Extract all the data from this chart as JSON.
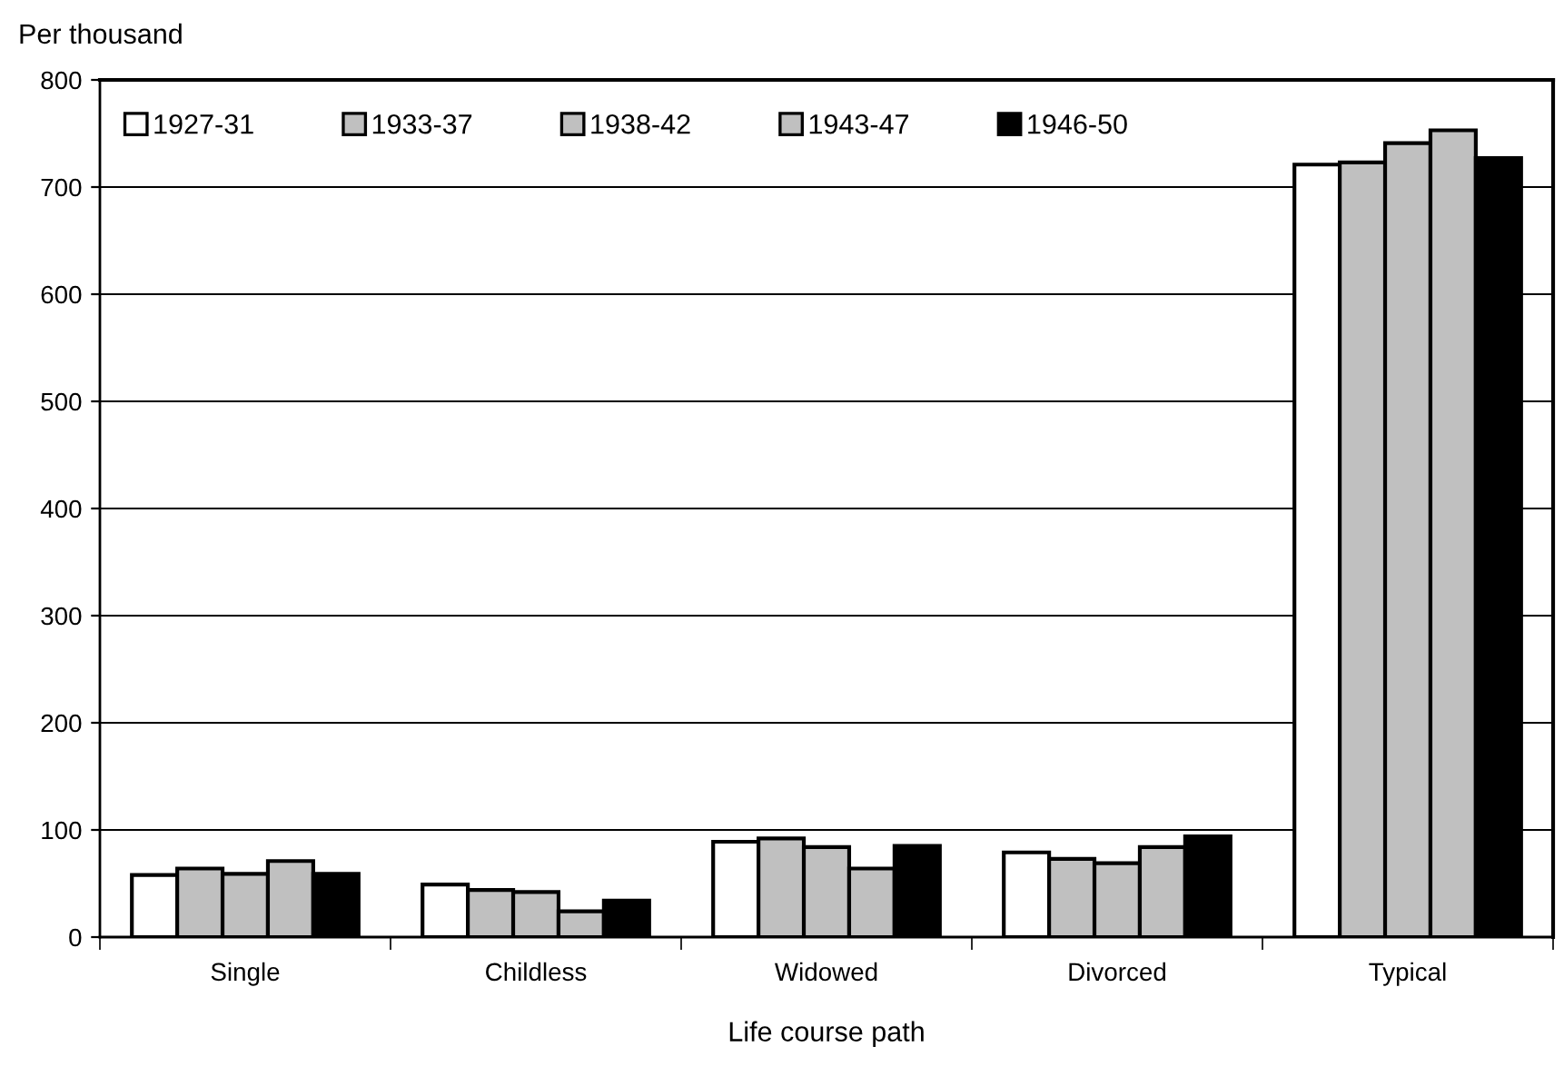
{
  "chart_data": {
    "type": "bar",
    "ylabel": "Per thousand",
    "xlabel": "Life course path",
    "categories": [
      "Single",
      "Childless",
      "Widowed",
      "Divorced",
      "Typical"
    ],
    "series": [
      {
        "name": "1927-31",
        "color": "#ffffff",
        "values": [
          58,
          49,
          89,
          79,
          721
        ]
      },
      {
        "name": "1933-37",
        "color": "#c0c0c0",
        "values": [
          64,
          44,
          92,
          73,
          723
        ]
      },
      {
        "name": "1938-42",
        "color": "#c0c0c0",
        "values": [
          59,
          42,
          84,
          69,
          741
        ]
      },
      {
        "name": "1943-47",
        "color": "#c0c0c0",
        "values": [
          71,
          24,
          64,
          84,
          753
        ]
      },
      {
        "name": "1946-50",
        "color": "#000000",
        "values": [
          59,
          34,
          85,
          94,
          727
        ]
      }
    ],
    "ylim": [
      0,
      800
    ],
    "yticks": [
      0,
      100,
      200,
      300,
      400,
      500,
      600,
      700,
      800
    ],
    "grid": "y",
    "legend": "top"
  }
}
